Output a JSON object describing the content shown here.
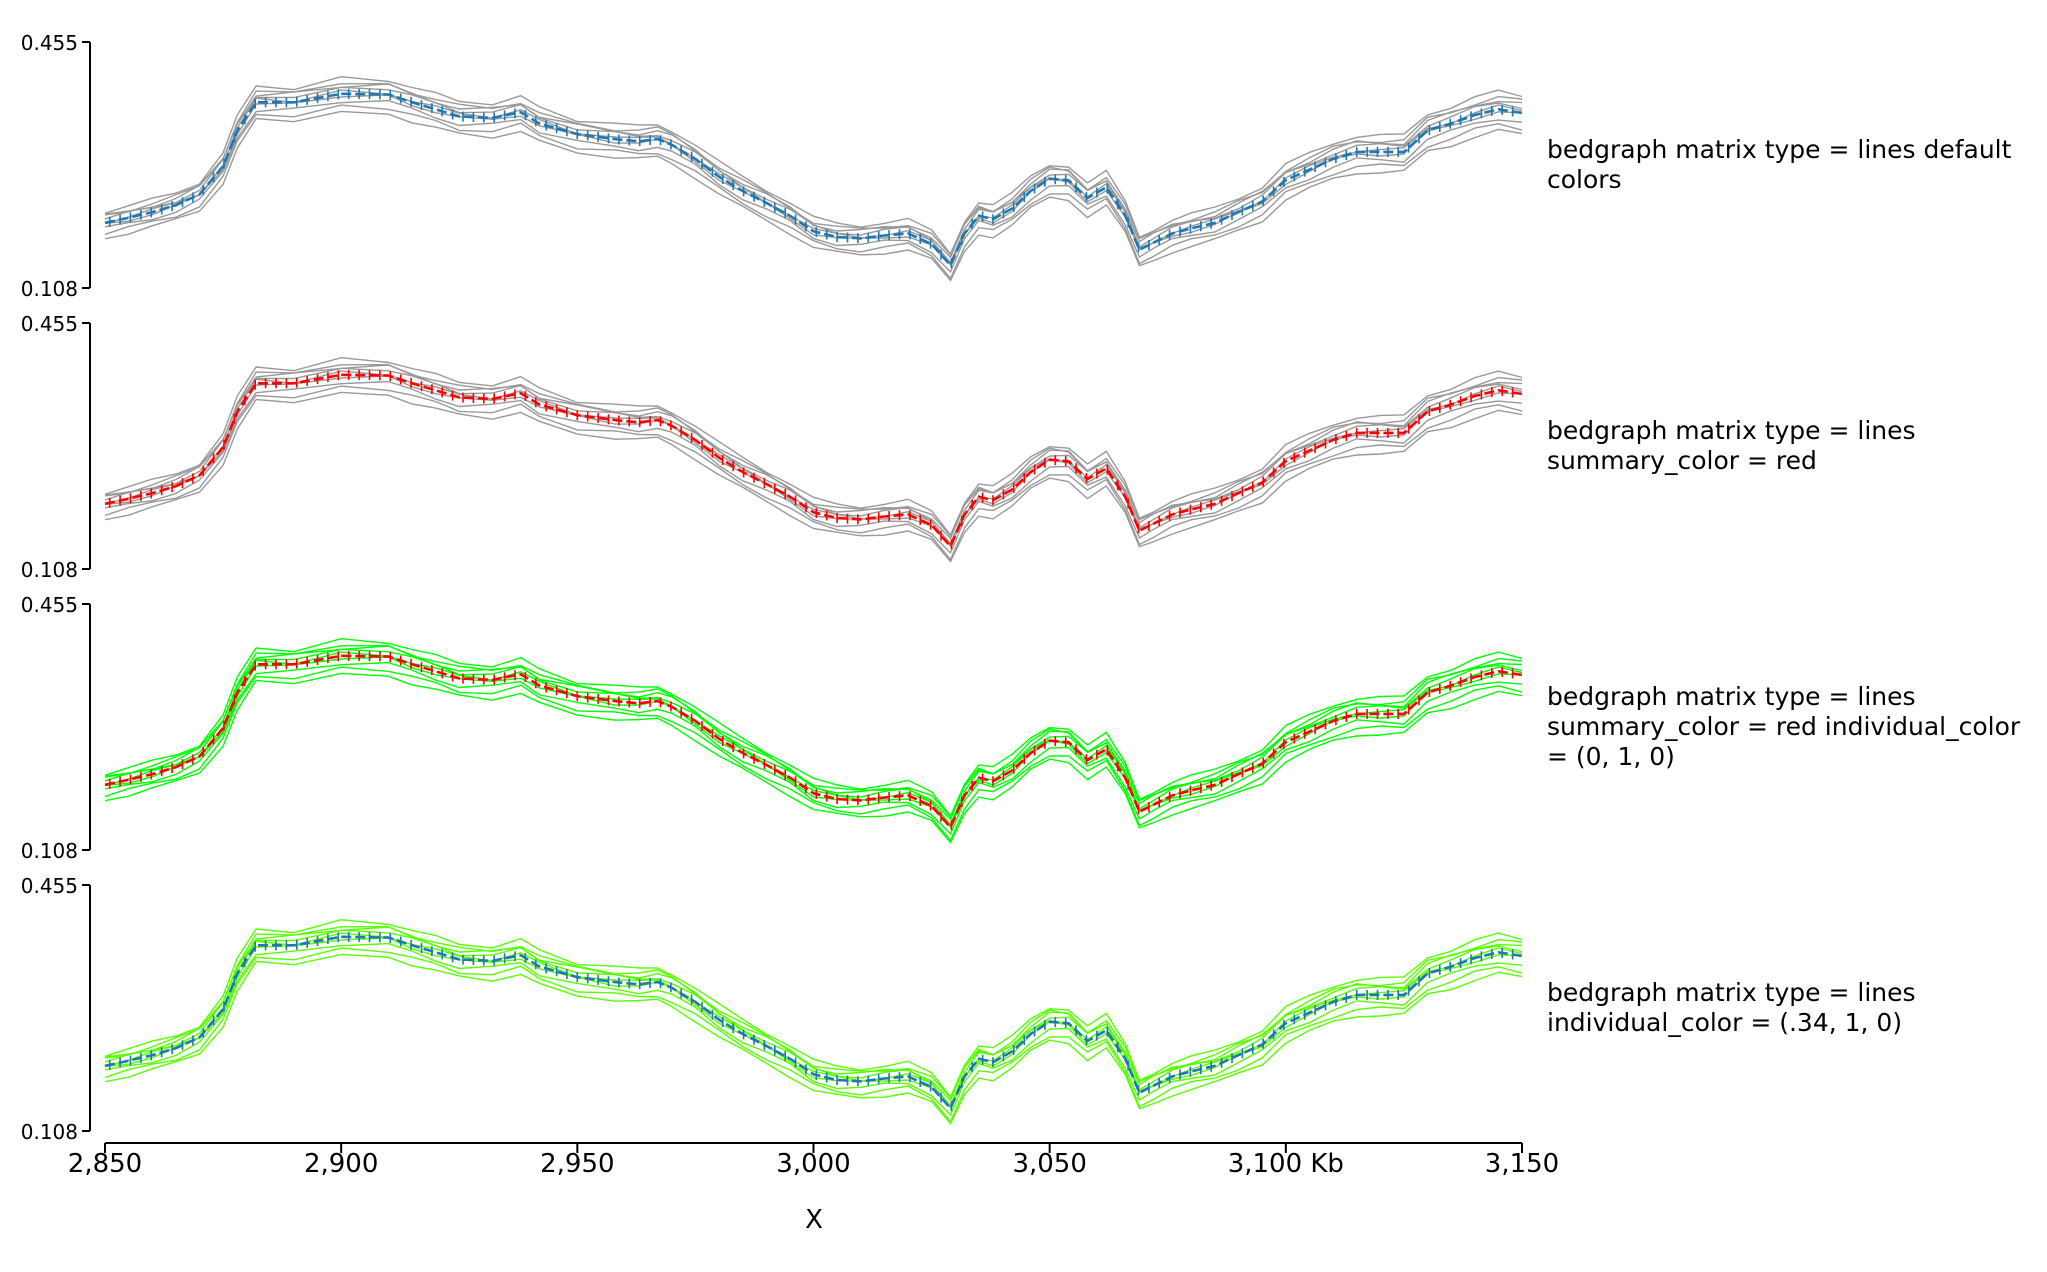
{
  "chart_data": {
    "type": "line",
    "xlabel": "X",
    "x_unit": "Kb",
    "xlim": [
      2850,
      3150
    ],
    "x_ticks": [
      2850,
      2900,
      2950,
      3000,
      3050,
      3100,
      3150
    ],
    "x_tick_labels": [
      "2,850",
      "2,900",
      "2,950",
      "3,000",
      "3,050",
      "3,100 Kb",
      "3,150"
    ],
    "ylim": [
      0.108,
      0.455
    ],
    "y_tick_labels": [
      "0.455",
      "0.108"
    ],
    "grid": false,
    "summary_profile": {
      "x": [
        2850,
        2855,
        2860,
        2865,
        2870,
        2875,
        2878,
        2882,
        2890,
        2900,
        2910,
        2915,
        2920,
        2925,
        2932,
        2938,
        2942,
        2950,
        2958,
        2963,
        2967,
        2970,
        2975,
        2980,
        2985,
        2990,
        2995,
        3000,
        3005,
        3010,
        3015,
        3020,
        3025,
        3029,
        3032,
        3035,
        3038,
        3042,
        3046,
        3050,
        3054,
        3058,
        3062,
        3066,
        3069,
        3072,
        3076,
        3080,
        3085,
        3090,
        3095,
        3100,
        3105,
        3110,
        3115,
        3120,
        3125,
        3130,
        3135,
        3140,
        3145,
        3150
      ],
      "y": [
        0.2,
        0.207,
        0.215,
        0.225,
        0.24,
        0.28,
        0.33,
        0.37,
        0.37,
        0.382,
        0.381,
        0.37,
        0.36,
        0.35,
        0.348,
        0.356,
        0.34,
        0.325,
        0.318,
        0.315,
        0.318,
        0.31,
        0.29,
        0.265,
        0.245,
        0.228,
        0.21,
        0.188,
        0.18,
        0.178,
        0.182,
        0.185,
        0.17,
        0.14,
        0.185,
        0.21,
        0.205,
        0.22,
        0.245,
        0.262,
        0.26,
        0.235,
        0.25,
        0.21,
        0.162,
        0.172,
        0.185,
        0.192,
        0.2,
        0.215,
        0.23,
        0.26,
        0.275,
        0.29,
        0.3,
        0.3,
        0.3,
        0.33,
        0.34,
        0.352,
        0.36,
        0.355
      ],
      "band_scale": [
        -1.0,
        -0.7,
        -0.4,
        -0.1,
        0.1,
        0.3,
        0.45,
        0.55,
        0.8
      ],
      "band_spread": 0.018,
      "band_growth": 0.0001
    },
    "panels": [
      {
        "label": "bedgraph matrix type = lines default colors",
        "summary_color": "#1f77b4",
        "individual_color": "#999999"
      },
      {
        "label": "bedgraph matrix type = lines summary_color = red",
        "summary_color": "#ff0000",
        "individual_color": "#999999"
      },
      {
        "label": "bedgraph matrix type = lines summary_color = red individual_color = (0, 1, 0)",
        "summary_color": "#ff0000",
        "individual_color": "#00ff00"
      },
      {
        "label": "bedgraph matrix type = lines individual_color = (.34, 1, 0)",
        "summary_color": "#1f77b4",
        "individual_color": "#57ff00"
      }
    ]
  }
}
